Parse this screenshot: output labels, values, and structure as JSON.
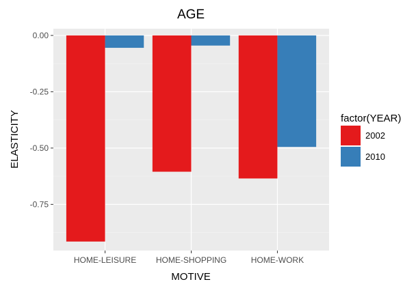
{
  "chart_data": {
    "type": "bar",
    "title": "AGE",
    "xlabel": "MOTIVE",
    "ylabel": "ELASTICITY",
    "categories": [
      "HOME-LEISURE",
      "HOME-SHOPPING",
      "HOME-WORK"
    ],
    "series": [
      {
        "name": "2002",
        "color": "#e41a1c",
        "values": [
          -0.915,
          -0.605,
          -0.635
        ]
      },
      {
        "name": "2010",
        "color": "#377eb8",
        "values": [
          -0.055,
          -0.045,
          -0.495
        ]
      }
    ],
    "ylim": [
      -0.955,
      0.03
    ],
    "yticks": [
      0.0,
      -0.25,
      -0.5,
      -0.75
    ],
    "ytick_labels": [
      "0.00",
      "-0.25",
      "-0.50",
      "-0.75"
    ],
    "grid": true,
    "legend": {
      "title": "factor(YEAR)",
      "position": "right"
    },
    "panel_background": "#ebebeb"
  }
}
